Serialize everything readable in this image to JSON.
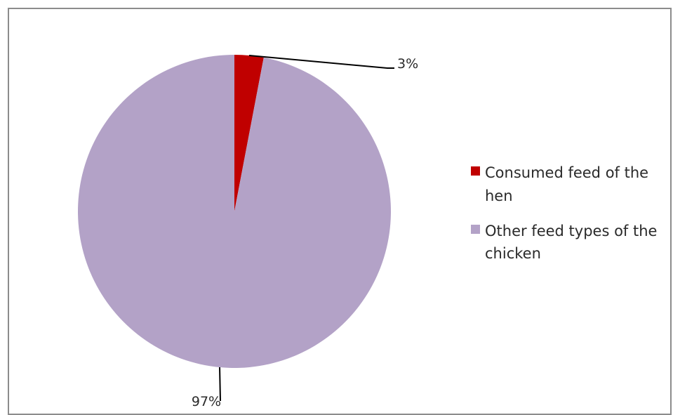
{
  "chart_data": {
    "type": "pie",
    "slices": [
      {
        "label": "Consumed feed of the hen",
        "value": 3,
        "value_label": "3%",
        "color": "#c00000"
      },
      {
        "label": "Other feed types of the chicken",
        "value": 97,
        "value_label": "97%",
        "color": "#b3a2c7"
      }
    ],
    "legend_position": "right",
    "legend": [
      {
        "lines": [
          "Consumed feed of the",
          "hen"
        ],
        "color": "#c00000"
      },
      {
        "lines": [
          "Other feed types of the",
          "chicken"
        ],
        "color": "#b3a2c7"
      }
    ]
  }
}
